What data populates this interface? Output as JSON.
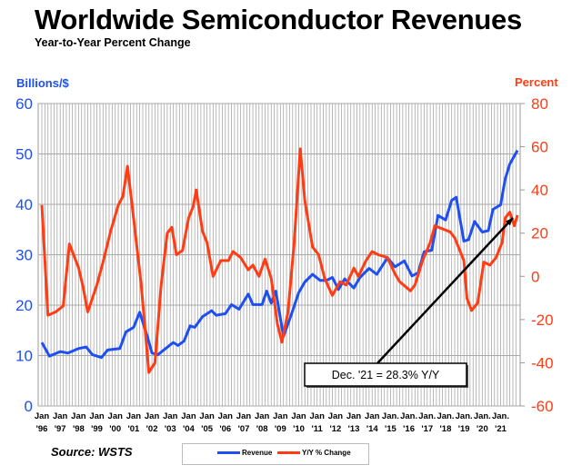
{
  "chart_data": {
    "type": "line",
    "title": "Worldwide Semiconductor Revenues",
    "subtitle": "Year-to-Year Percent Change",
    "ylabel_left": "Billions/$",
    "ylabel_right": "Percent",
    "ylim_left": [
      0,
      60
    ],
    "ylim_right": [
      -60,
      80
    ],
    "yticks_left": [
      "0",
      "10",
      "20",
      "30",
      "40",
      "50",
      "60"
    ],
    "yticks_right": [
      "-60",
      "-40",
      "-20",
      "0",
      "20",
      "40",
      "60",
      "80"
    ],
    "xlim": [
      "1996-01",
      "2021-12"
    ],
    "xticks": [
      [
        "Jan",
        "'96"
      ],
      [
        "Jan",
        "'97"
      ],
      [
        "Jan",
        "'98"
      ],
      [
        "Jan",
        "'99"
      ],
      [
        "Jan",
        "'00"
      ],
      [
        "Jan",
        "'01"
      ],
      [
        "Jan",
        "'02"
      ],
      [
        "Jan",
        "'03"
      ],
      [
        "Jan",
        "'04"
      ],
      [
        "Jan",
        "'05"
      ],
      [
        "Jan",
        "'06"
      ],
      [
        "Jan",
        "'07"
      ],
      [
        "Jan",
        "'08"
      ],
      [
        "Jan",
        "'09"
      ],
      [
        "Jan",
        "'10"
      ],
      [
        "Jan",
        "'11"
      ],
      [
        "Jan",
        "'12"
      ],
      [
        "Jan",
        "'13"
      ],
      [
        "Jan",
        "'14"
      ],
      [
        "Jan.",
        "'15"
      ],
      [
        "Jan.",
        "'16"
      ],
      [
        "Jan.",
        "'17"
      ],
      [
        "Jan.",
        "'18"
      ],
      [
        "Jan.",
        "'19"
      ],
      [
        "Jan.",
        "'20"
      ],
      [
        "Jan.",
        "'21"
      ]
    ],
    "grid": true,
    "legend_placement": "bottom",
    "source": "Source: WSTS",
    "annotation": {
      "text": "Dec. '21 = 28.3% Y/Y",
      "points_to": [
        "2021-12",
        28.3
      ]
    },
    "series": [
      {
        "name": "Revenue",
        "axis": "left",
        "color": "#1e4ff0",
        "x": [
          "1996-01",
          "1996-06",
          "1997-01",
          "1997-06",
          "1998-01",
          "1998-06",
          "1998-10",
          "1999-04",
          "1999-08",
          "2000-04",
          "2000-08",
          "2001-01",
          "2001-05",
          "2001-10",
          "2002-01",
          "2002-05",
          "2002-10",
          "2003-03",
          "2003-06",
          "2003-10",
          "2004-02",
          "2004-05",
          "2004-10",
          "2005-04",
          "2005-07",
          "2006-01",
          "2006-05",
          "2006-10",
          "2007-04",
          "2007-07",
          "2008-01",
          "2008-04",
          "2008-07",
          "2008-10",
          "2009-03",
          "2009-08",
          "2010-01",
          "2010-05",
          "2010-10",
          "2011-03",
          "2011-07",
          "2011-11",
          "2012-03",
          "2012-07",
          "2013-01",
          "2013-05",
          "2013-11",
          "2014-04",
          "2014-11",
          "2015-04",
          "2015-10",
          "2016-03",
          "2016-07",
          "2016-11",
          "2017-04",
          "2017-08",
          "2018-01",
          "2018-05",
          "2018-08",
          "2019-01",
          "2019-04",
          "2019-08",
          "2020-01",
          "2020-05",
          "2020-08",
          "2021-01",
          "2021-04",
          "2021-07",
          "2021-12"
        ],
        "values": [
          12.6,
          9.9,
          10.8,
          10.5,
          11.4,
          11.7,
          10.2,
          9.6,
          11.1,
          11.4,
          14.7,
          15.6,
          18.6,
          13.8,
          10.5,
          10.2,
          11.4,
          12.6,
          12.0,
          12.9,
          15.9,
          15.6,
          17.7,
          18.9,
          18.0,
          18.3,
          20.1,
          19.2,
          22.2,
          20.1,
          20.1,
          22.8,
          20.4,
          22.8,
          13.8,
          18.0,
          22.5,
          24.6,
          26.1,
          24.9,
          24.9,
          25.5,
          23.1,
          25.2,
          23.4,
          25.5,
          27.3,
          26.1,
          29.4,
          27.6,
          28.8,
          25.8,
          26.4,
          30.6,
          30.9,
          37.8,
          36.9,
          40.8,
          41.4,
          32.7,
          33.0,
          36.6,
          34.5,
          34.8,
          39.0,
          39.9,
          45.0,
          48.0,
          50.7
        ]
      },
      {
        "name": "Y/Y % Change",
        "axis": "right",
        "color": "#ff3c14",
        "x": [
          "1996-01",
          "1996-05",
          "1996-10",
          "1997-03",
          "1997-07",
          "1998-01",
          "1998-04",
          "1998-07",
          "1999-01",
          "1999-05",
          "1999-10",
          "2000-03",
          "2000-06",
          "2000-09",
          "2001-01",
          "2001-06",
          "2001-11",
          "2002-03",
          "2002-07",
          "2002-11",
          "2003-02",
          "2003-05",
          "2003-09",
          "2004-01",
          "2004-04",
          "2004-06",
          "2004-10",
          "2005-01",
          "2005-05",
          "2005-10",
          "2006-03",
          "2006-06",
          "2006-11",
          "2007-04",
          "2007-07",
          "2007-11",
          "2008-03",
          "2008-07",
          "2008-11",
          "2009-02",
          "2009-06",
          "2009-10",
          "2010-02",
          "2010-05",
          "2010-10",
          "2011-02",
          "2011-06",
          "2011-11",
          "2012-04",
          "2012-08",
          "2013-01",
          "2013-04",
          "2013-09",
          "2014-01",
          "2014-05",
          "2014-11",
          "2015-04",
          "2015-07",
          "2016-02",
          "2016-05",
          "2016-10",
          "2017-03",
          "2017-06",
          "2017-11",
          "2018-04",
          "2018-07",
          "2019-01",
          "2019-03",
          "2019-06",
          "2019-10",
          "2020-02",
          "2020-06",
          "2020-10",
          "2021-02",
          "2021-04",
          "2021-07",
          "2021-10",
          "2021-12"
        ],
        "values": [
          33,
          -18,
          -16.5,
          -13.7,
          15,
          4,
          -5,
          -16.5,
          -4,
          6.6,
          21,
          33,
          37,
          51,
          27,
          -4,
          -44.5,
          -40,
          -4,
          20,
          22.7,
          10,
          12,
          27,
          32.5,
          40,
          21,
          15.7,
          0,
          7.3,
          7.3,
          11.5,
          8.7,
          3,
          5.2,
          0,
          8,
          -1,
          -22,
          -30.5,
          -16.5,
          15.7,
          59,
          35,
          13.6,
          10,
          -1,
          -8.8,
          -2.5,
          -4,
          3.8,
          0,
          7.3,
          11.5,
          10,
          8.7,
          1,
          -2.5,
          -6.7,
          -4,
          7.3,
          15.7,
          23.4,
          22,
          20.6,
          17.8,
          7.3,
          -10.2,
          -15.8,
          -12.3,
          6.6,
          5.2,
          8.7,
          15.7,
          27,
          29.7,
          23.4,
          28.3
        ]
      }
    ]
  }
}
